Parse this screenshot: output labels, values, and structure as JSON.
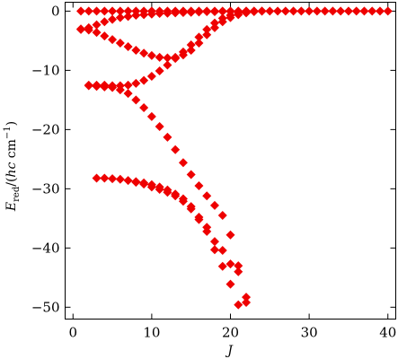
{
  "chart_data": {
    "type": "scatter",
    "title": "",
    "xlabel": "J",
    "ylabel": "E_red/(hc cm^-1)",
    "xlim": [
      -1,
      41
    ],
    "ylim": [
      -52,
      1.5
    ],
    "grid": false,
    "marker": "diamond",
    "color": "#ee0000",
    "x_ticks": [
      0,
      10,
      20,
      30,
      40
    ],
    "y_ticks": [
      0,
      -10,
      -20,
      -30,
      -40,
      -50
    ],
    "x_tick_labels": [
      "0",
      "10",
      "20",
      "30",
      "40"
    ],
    "y_tick_labels": [
      "0",
      "−10",
      "−20",
      "−30",
      "−40",
      "−50"
    ],
    "ylabel_parts": {
      "E": "E",
      "sub": "red",
      "mid": "/(",
      "hc": "hc",
      "cm": " cm",
      "sup": "−1",
      "end": ")"
    },
    "series": [
      {
        "points": [
          [
            1,
            0
          ],
          [
            2,
            0
          ],
          [
            3,
            0
          ],
          [
            4,
            0
          ],
          [
            5,
            0
          ],
          [
            6,
            0
          ],
          [
            7,
            0
          ],
          [
            8,
            0
          ],
          [
            9,
            0
          ],
          [
            10,
            0
          ],
          [
            11,
            0
          ],
          [
            12,
            0
          ],
          [
            13,
            0
          ],
          [
            14,
            0
          ],
          [
            15,
            0
          ],
          [
            16,
            0
          ],
          [
            17,
            0
          ],
          [
            18,
            0
          ],
          [
            19,
            0
          ],
          [
            20,
            0
          ],
          [
            21,
            0
          ],
          [
            22,
            0
          ],
          [
            23,
            0
          ],
          [
            24,
            0
          ],
          [
            25,
            0
          ],
          [
            26,
            0
          ],
          [
            27,
            0
          ],
          [
            28,
            0
          ],
          [
            29,
            0
          ],
          [
            30,
            0
          ],
          [
            31,
            0
          ],
          [
            32,
            0
          ],
          [
            33,
            0
          ],
          [
            34,
            0
          ],
          [
            35,
            0
          ],
          [
            36,
            0
          ],
          [
            37,
            0
          ],
          [
            38,
            0
          ],
          [
            39,
            0
          ],
          [
            40,
            0
          ]
        ]
      },
      {
        "points": [
          [
            1,
            -3
          ],
          [
            2,
            -2.8
          ],
          [
            3,
            -2.3
          ],
          [
            4,
            -1.8
          ],
          [
            5,
            -1.4
          ],
          [
            6,
            -1.1
          ],
          [
            7,
            -0.9
          ],
          [
            8,
            -0.7
          ],
          [
            9,
            -0.6
          ],
          [
            10,
            -0.5
          ],
          [
            11,
            -0.4
          ],
          [
            12,
            -0.35
          ],
          [
            13,
            -0.3
          ],
          [
            14,
            -0.25
          ],
          [
            15,
            -0.2
          ],
          [
            16,
            -0.15
          ],
          [
            17,
            -0.1
          ],
          [
            18,
            -0.1
          ],
          [
            19,
            -0.05
          ],
          [
            20,
            -0.05
          ],
          [
            21,
            -0.02
          ],
          [
            22,
            0
          ]
        ]
      },
      {
        "points": [
          [
            1,
            -3.1
          ],
          [
            2,
            -3.2
          ],
          [
            3,
            -3.6
          ],
          [
            4,
            -4.2
          ],
          [
            5,
            -4.8
          ],
          [
            6,
            -5.4
          ],
          [
            7,
            -6.0
          ],
          [
            8,
            -6.6
          ],
          [
            9,
            -7.1
          ],
          [
            10,
            -7.5
          ],
          [
            11,
            -7.8
          ],
          [
            12,
            -7.9
          ],
          [
            13,
            -7.8
          ],
          [
            14,
            -7.4
          ],
          [
            15,
            -6.6
          ],
          [
            16,
            -5.4
          ],
          [
            17,
            -4.0
          ],
          [
            18,
            -2.8
          ],
          [
            19,
            -1.8
          ],
          [
            20,
            -1.1
          ],
          [
            21,
            -0.6
          ],
          [
            22,
            -0.3
          ],
          [
            23,
            -0.1
          ],
          [
            24,
            0
          ]
        ]
      },
      {
        "points": [
          [
            2,
            -12.5
          ],
          [
            3,
            -12.5
          ],
          [
            4,
            -12.5
          ],
          [
            5,
            -12.6
          ],
          [
            6,
            -12.6
          ],
          [
            7,
            -12.5
          ],
          [
            8,
            -12.2
          ],
          [
            9,
            -11.7
          ],
          [
            10,
            -11.0
          ],
          [
            11,
            -10.1
          ],
          [
            12,
            -9.1
          ],
          [
            13,
            -8.0
          ],
          [
            14,
            -6.9
          ],
          [
            15,
            -5.7
          ],
          [
            16,
            -4.4
          ],
          [
            17,
            -3.1
          ],
          [
            18,
            -2.0
          ],
          [
            19,
            -1.2
          ],
          [
            20,
            -0.7
          ],
          [
            21,
            -0.3
          ],
          [
            22,
            -0.1
          ],
          [
            23,
            0
          ]
        ]
      },
      {
        "points": [
          [
            2,
            -12.6
          ],
          [
            3,
            -12.7
          ],
          [
            4,
            -12.8
          ],
          [
            5,
            -12.9
          ],
          [
            6,
            -13.3
          ],
          [
            7,
            -13.9
          ],
          [
            8,
            -15.0
          ],
          [
            9,
            -16.3
          ],
          [
            10,
            -17.8
          ],
          [
            11,
            -19.5
          ],
          [
            12,
            -21.3
          ],
          [
            13,
            -23.4
          ],
          [
            14,
            -25.6
          ],
          [
            15,
            -27.6
          ],
          [
            16,
            -29.5
          ],
          [
            17,
            -31.2
          ],
          [
            18,
            -32.8
          ],
          [
            19,
            -34.5
          ],
          [
            20,
            -37.8
          ],
          [
            21,
            -43.0
          ],
          [
            22,
            -48.3
          ]
        ]
      },
      {
        "points": [
          [
            3,
            -28.2
          ],
          [
            4,
            -28.2
          ],
          [
            5,
            -28.3
          ],
          [
            6,
            -28.4
          ],
          [
            7,
            -28.6
          ],
          [
            8,
            -28.9
          ],
          [
            9,
            -29.2
          ],
          [
            10,
            -29.7
          ],
          [
            11,
            -30.1
          ],
          [
            12,
            -30.6
          ],
          [
            13,
            -31.2
          ],
          [
            14,
            -32.1
          ],
          [
            15,
            -33.4
          ],
          [
            16,
            -35.2
          ],
          [
            17,
            -37.2
          ],
          [
            18,
            -40.3
          ],
          [
            19,
            -43.1
          ],
          [
            20,
            -46.1
          ],
          [
            21,
            -49.6
          ]
        ]
      },
      {
        "points": [
          [
            8,
            -28.8
          ],
          [
            9,
            -29.0
          ],
          [
            10,
            -29.3
          ],
          [
            11,
            -29.7
          ],
          [
            12,
            -30.2
          ],
          [
            13,
            -30.9
          ],
          [
            14,
            -31.7
          ],
          [
            15,
            -33.0
          ],
          [
            16,
            -34.8
          ],
          [
            17,
            -36.5
          ],
          [
            18,
            -38.9
          ],
          [
            19,
            -40.4
          ],
          [
            20,
            -42.7
          ],
          [
            21,
            -44.0
          ],
          [
            22,
            -49.2
          ]
        ]
      }
    ]
  }
}
